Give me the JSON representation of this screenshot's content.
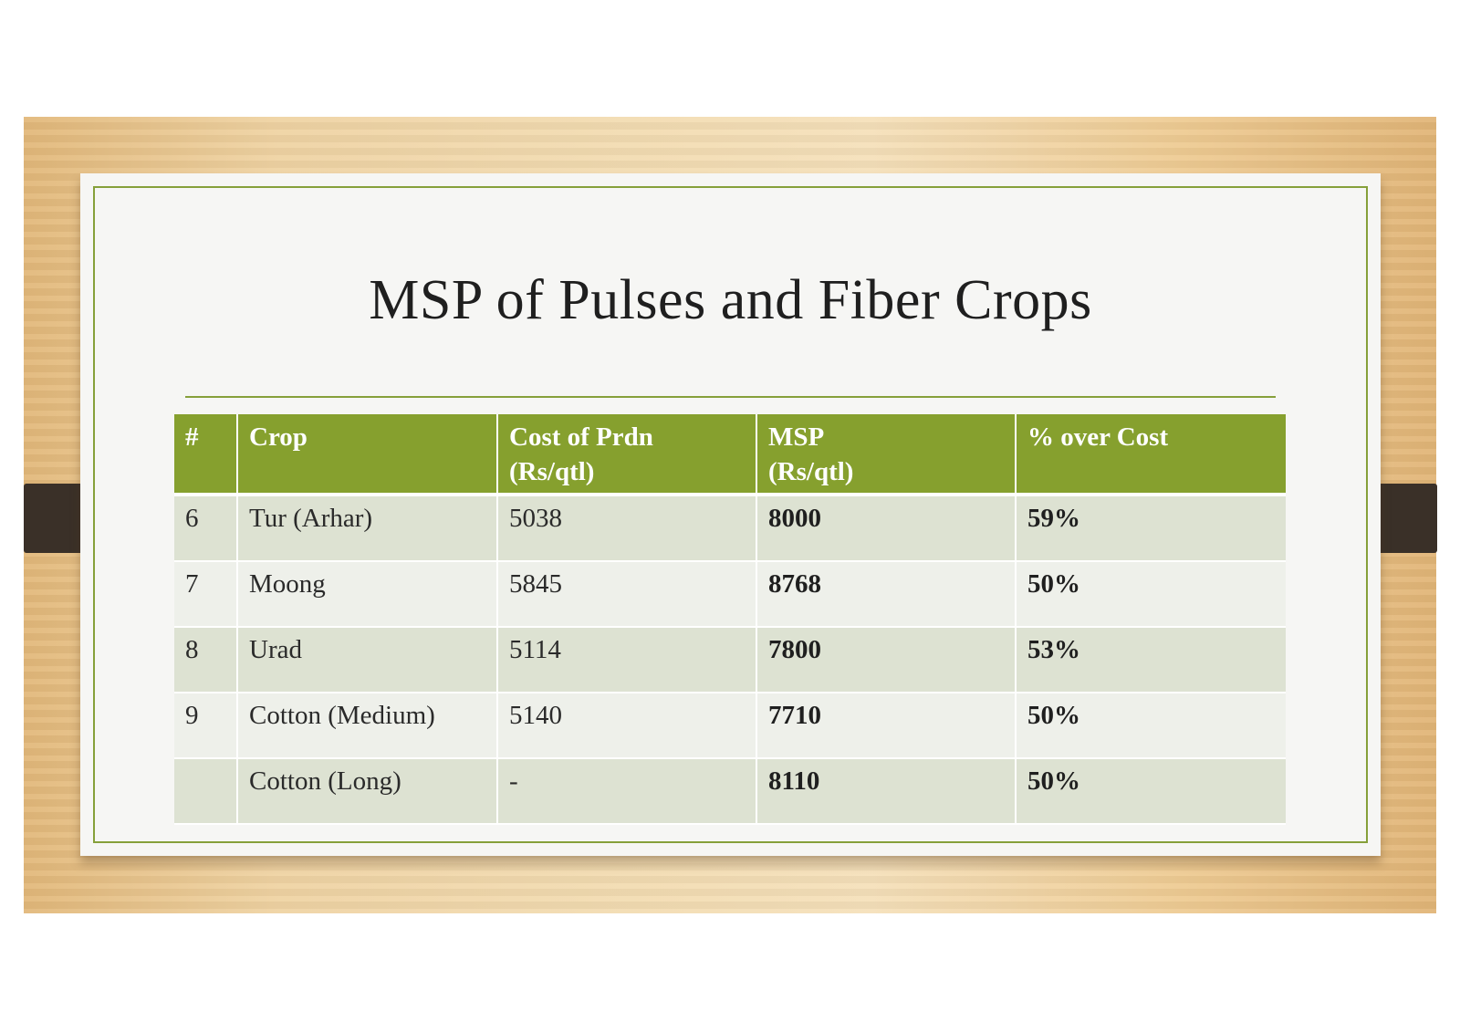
{
  "slide": {
    "title": "MSP of Pulses and Fiber Crops"
  },
  "table": {
    "headers": {
      "num": "#",
      "crop": "Crop",
      "cost_line1": "Cost of Prdn",
      "cost_line2": "(Rs/qtl)",
      "msp_line1": "MSP",
      "msp_line2": "(Rs/qtl)",
      "pct": "% over Cost"
    },
    "rows": [
      {
        "num": "6",
        "crop": "Tur (Arhar)",
        "cost": "5038",
        "msp": "8000",
        "pct": "59%"
      },
      {
        "num": "7",
        "crop": "Moong",
        "cost": "5845",
        "msp": "8768",
        "pct": "50%"
      },
      {
        "num": "8",
        "crop": "Urad",
        "cost": "5114",
        "msp": "7800",
        "pct": "53%"
      },
      {
        "num": "9",
        "crop": "Cotton (Medium)",
        "cost": "5140",
        "msp": "7710",
        "pct": "50%"
      },
      {
        "num": "",
        "crop": "Cotton (Long)",
        "cost": "-",
        "msp": "8110",
        "pct": "50%"
      }
    ]
  }
}
